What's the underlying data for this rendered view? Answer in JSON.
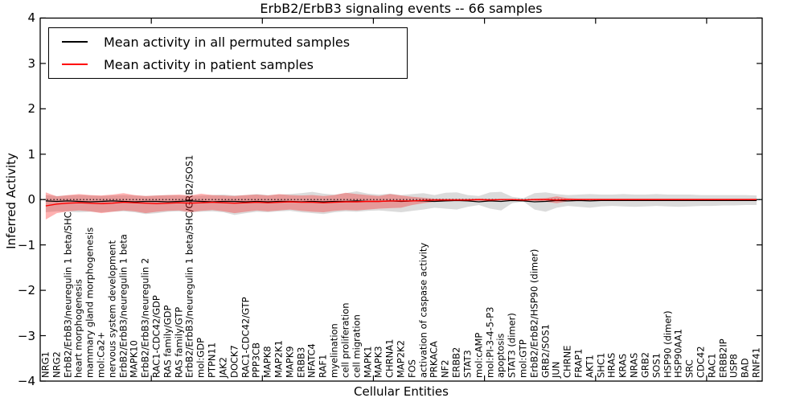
{
  "figure": {
    "title": "ErbB2/ErbB3 signaling events -- 66 samples",
    "xlabel": "Cellular Entities",
    "ylabel": "Inferred Activity"
  },
  "legend": {
    "items": [
      {
        "label": "Mean activity in all permuted samples",
        "color_key": "permuted"
      },
      {
        "label": "Mean activity in patient samples",
        "color_key": "patient"
      }
    ]
  },
  "colors": {
    "permuted": "#000000",
    "patient": "#ff0000",
    "permuted_band": "rgba(0,0,0,0.14)",
    "patient_band": "rgba(255,0,0,0.30)",
    "zero_line": "#000000",
    "axis": "#000000"
  },
  "chart_data": {
    "type": "line",
    "title": "ErbB2/ErbB3 signaling events -- 66 samples",
    "xlabel": "Cellular Entities",
    "ylabel": "Inferred Activity",
    "ylim": [
      -4,
      4
    ],
    "y_ticks": [
      "4",
      "3",
      "2",
      "1",
      "0",
      "−1",
      "−2",
      "−3",
      "−4"
    ],
    "y_tick_values": [
      4,
      3,
      2,
      1,
      0,
      -1,
      -2,
      -3,
      -4
    ],
    "x_major_tick_values": [
      10,
      20,
      30,
      40,
      50,
      60
    ],
    "grid": false,
    "legend_position": "upper left",
    "zero_reference_line": 0,
    "categories": [
      "NRG1",
      "NRG2",
      "ErbB2/ErbB3/neuregulin 1 beta/SHC",
      "heart morphogenesis",
      "mammary gland morphogenesis",
      "mol:Ca2+",
      "nervous system development",
      "ErbB2/ErbB3/neuregulin 1 beta",
      "MAPK10",
      "ErbB2/ErbB3/neuregulin 2",
      "RAC1-CDC42/GDP",
      "RAS family/GDP",
      "RAS family/GTP",
      "ErbB2/ErbB3/neuregulin 1 beta/SHC/GRB2/SOS1",
      "mol:GDP",
      "PTPN11",
      "JAK2",
      "DOCK7",
      "RAC1-CDC42/GTP",
      "PPP3CB",
      "MAPK8",
      "MAP2K1",
      "MAPK9",
      "ERBB3",
      "NFATC4",
      "RAF1",
      "myelination",
      "cell proliferation",
      "cell migration",
      "MAPK1",
      "MAPK3",
      "CHRNA1",
      "MAP2K2",
      "FOS",
      "activation of caspase activity",
      "PRKACA",
      "NF2",
      "ERBB2",
      "STAT3",
      "mol:cAMP",
      "mol:PI-3-4-5-P3",
      "apoptosis",
      "STAT3 (dimer)",
      "mol:GTP",
      "ErbB2/ErbB2/HSP90 (dimer)",
      "GRB2/SOS1",
      "JUN",
      "CHRNE",
      "FRAP1",
      "AKT1",
      "SHC1",
      "HRAS",
      "KRAS",
      "NRAS",
      "GRB2",
      "SOS1",
      "HSP90 (dimer)",
      "HSP90AA1",
      "SRC",
      "CDC42",
      "RAC1",
      "ERBB2IP",
      "USP8",
      "BAD",
      "RNF41"
    ],
    "series": [
      {
        "name": "Mean activity in all permuted samples",
        "values": [
          -0.03,
          -0.04,
          -0.03,
          -0.04,
          -0.05,
          -0.04,
          -0.03,
          -0.04,
          -0.05,
          -0.04,
          -0.04,
          -0.05,
          -0.04,
          -0.03,
          -0.04,
          -0.05,
          -0.04,
          -0.04,
          -0.05,
          -0.04,
          -0.05,
          -0.04,
          -0.04,
          -0.05,
          -0.04,
          -0.05,
          -0.04,
          -0.04,
          -0.03,
          -0.04,
          -0.04,
          -0.03,
          -0.04,
          -0.03,
          -0.03,
          -0.04,
          -0.03,
          -0.02,
          -0.03,
          -0.05,
          -0.03,
          -0.04,
          -0.02,
          -0.03,
          -0.05,
          -0.04,
          -0.02,
          -0.03,
          -0.02,
          -0.03,
          -0.02,
          -0.02,
          -0.02,
          -0.02,
          -0.02,
          -0.02,
          -0.02,
          -0.02,
          -0.02,
          -0.02,
          -0.02,
          -0.02,
          -0.02,
          -0.02,
          -0.02
        ],
        "band_upper": [
          0.1,
          0.08,
          0.09,
          0.1,
          0.09,
          0.08,
          0.09,
          0.1,
          0.09,
          0.08,
          0.09,
          0.1,
          0.09,
          0.08,
          0.09,
          0.1,
          0.11,
          0.09,
          0.1,
          0.12,
          0.1,
          0.11,
          0.12,
          0.14,
          0.17,
          0.13,
          0.11,
          0.14,
          0.18,
          0.13,
          0.11,
          0.13,
          0.1,
          0.12,
          0.14,
          0.1,
          0.15,
          0.16,
          0.1,
          0.08,
          0.16,
          0.17,
          0.06,
          0.03,
          0.14,
          0.16,
          0.12,
          0.1,
          0.11,
          0.12,
          0.11,
          0.11,
          0.12,
          0.11,
          0.11,
          0.12,
          0.11,
          0.11,
          0.11,
          0.1,
          0.1,
          0.1,
          0.1,
          0.1,
          0.09
        ],
        "band_lower": [
          -0.28,
          -0.26,
          -0.27,
          -0.28,
          -0.27,
          -0.28,
          -0.27,
          -0.26,
          -0.28,
          -0.32,
          -0.3,
          -0.27,
          -0.26,
          -0.28,
          -0.27,
          -0.26,
          -0.28,
          -0.34,
          -0.3,
          -0.27,
          -0.28,
          -0.26,
          -0.25,
          -0.28,
          -0.3,
          -0.32,
          -0.28,
          -0.26,
          -0.27,
          -0.25,
          -0.24,
          -0.26,
          -0.28,
          -0.25,
          -0.22,
          -0.18,
          -0.2,
          -0.22,
          -0.16,
          -0.12,
          -0.2,
          -0.24,
          -0.08,
          -0.04,
          -0.22,
          -0.27,
          -0.18,
          -0.14,
          -0.16,
          -0.18,
          -0.15,
          -0.14,
          -0.15,
          -0.16,
          -0.15,
          -0.14,
          -0.15,
          -0.16,
          -0.15,
          -0.14,
          -0.14,
          -0.13,
          -0.13,
          -0.12,
          -0.12
        ]
      },
      {
        "name": "Mean activity in patient samples",
        "values": [
          -0.14,
          -0.1,
          -0.08,
          -0.07,
          -0.08,
          -0.09,
          -0.08,
          -0.06,
          -0.07,
          -0.08,
          -0.09,
          -0.08,
          -0.07,
          -0.08,
          -0.07,
          -0.06,
          -0.07,
          -0.08,
          -0.07,
          -0.06,
          -0.07,
          -0.06,
          -0.05,
          -0.06,
          -0.06,
          -0.07,
          -0.06,
          -0.05,
          -0.05,
          -0.04,
          -0.04,
          -0.03,
          -0.03,
          -0.03,
          -0.02,
          -0.01,
          -0.01,
          -0.01,
          -0.01,
          0.0,
          -0.01,
          0.0,
          0.0,
          -0.01,
          0.0,
          0.0,
          -0.01,
          0.0,
          0.0,
          0.0,
          0.0,
          0.0,
          0.0,
          0.0,
          0.0,
          0.0,
          0.0,
          0.0,
          0.0,
          0.0,
          0.0,
          0.0,
          0.0,
          0.0,
          0.0
        ],
        "band_upper": [
          0.16,
          0.07,
          0.1,
          0.12,
          0.1,
          0.09,
          0.11,
          0.14,
          0.1,
          0.08,
          0.09,
          0.1,
          0.11,
          0.09,
          0.13,
          0.1,
          0.09,
          0.08,
          0.1,
          0.11,
          0.09,
          0.12,
          0.1,
          0.09,
          0.1,
          0.08,
          0.1,
          0.15,
          0.12,
          0.1,
          0.08,
          0.12,
          0.09,
          0.06,
          0.04,
          0.02,
          0.02,
          0.02,
          0.02,
          0.02,
          0.02,
          0.01,
          0.01,
          0.01,
          0.02,
          0.03,
          0.07,
          0.03,
          0.02,
          0.02,
          0.02,
          0.02,
          0.02,
          0.02,
          0.02,
          0.02,
          0.02,
          0.02,
          0.02,
          0.02,
          0.02,
          0.02,
          0.02,
          0.02,
          0.02
        ],
        "band_lower": [
          -0.44,
          -0.3,
          -0.26,
          -0.24,
          -0.26,
          -0.3,
          -0.27,
          -0.24,
          -0.26,
          -0.3,
          -0.27,
          -0.25,
          -0.24,
          -0.28,
          -0.25,
          -0.23,
          -0.26,
          -0.3,
          -0.27,
          -0.24,
          -0.26,
          -0.24,
          -0.22,
          -0.25,
          -0.27,
          -0.28,
          -0.25,
          -0.23,
          -0.24,
          -0.22,
          -0.2,
          -0.19,
          -0.18,
          -0.12,
          -0.08,
          -0.05,
          -0.04,
          -0.03,
          -0.03,
          -0.03,
          -0.03,
          -0.02,
          -0.02,
          -0.02,
          -0.03,
          -0.05,
          -0.08,
          -0.04,
          -0.03,
          -0.03,
          -0.03,
          -0.03,
          -0.03,
          -0.03,
          -0.03,
          -0.03,
          -0.03,
          -0.03,
          -0.03,
          -0.03,
          -0.03,
          -0.03,
          -0.03,
          -0.03,
          -0.03
        ]
      }
    ]
  }
}
